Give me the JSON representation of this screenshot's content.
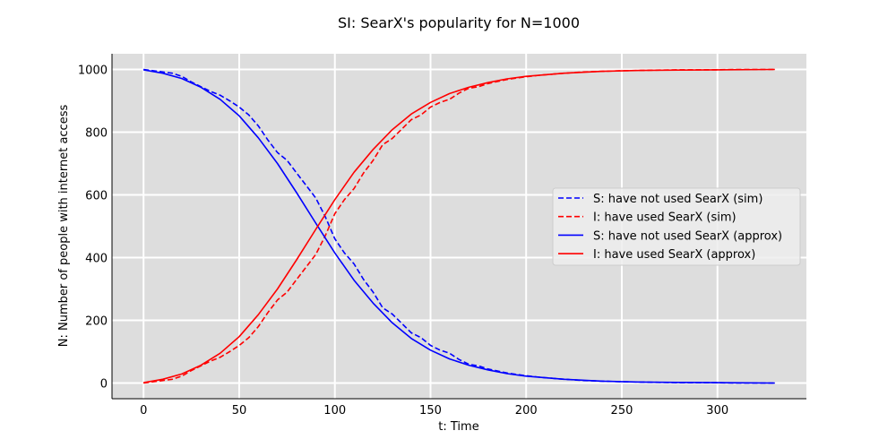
{
  "chart_data": {
    "type": "line",
    "title": "SI: SearX's popularity for N=1000",
    "xlabel": "t: Time",
    "ylabel": "N: Number of people with internet access",
    "xlim": [
      -16.5,
      346.5
    ],
    "ylim": [
      -50,
      1050
    ],
    "xticks": [
      0,
      50,
      100,
      150,
      200,
      250,
      300
    ],
    "yticks": [
      0,
      200,
      400,
      600,
      800,
      1000
    ],
    "grid": true,
    "legend_position": "center-right",
    "background_color": "#dddddd",
    "series": [
      {
        "name": "S: have not used SearX (sim)",
        "color": "#0000ff",
        "style": "dashed",
        "x": [
          0,
          5,
          10,
          15,
          20,
          25,
          30,
          35,
          40,
          45,
          50,
          55,
          60,
          65,
          70,
          75,
          80,
          85,
          90,
          95,
          100,
          105,
          110,
          115,
          120,
          125,
          130,
          135,
          140,
          145,
          150,
          155,
          160,
          165,
          170,
          175,
          180,
          190,
          200,
          210,
          220,
          230,
          240,
          250,
          260,
          270,
          280,
          290,
          300,
          310,
          320,
          330
        ],
        "values": [
          1000,
          996,
          992,
          988,
          978,
          960,
          945,
          930,
          918,
          900,
          880,
          855,
          820,
          775,
          735,
          710,
          670,
          630,
          590,
          530,
          460,
          415,
          380,
          330,
          290,
          240,
          220,
          190,
          160,
          145,
          120,
          105,
          95,
          75,
          60,
          55,
          45,
          32,
          23,
          17,
          12,
          8,
          6,
          4,
          3,
          2,
          1,
          1,
          1,
          0,
          0,
          0
        ]
      },
      {
        "name": "I: have used SearX (sim)",
        "color": "#ff0000",
        "style": "dashed",
        "x": [
          0,
          5,
          10,
          15,
          20,
          25,
          30,
          35,
          40,
          45,
          50,
          55,
          60,
          65,
          70,
          75,
          80,
          85,
          90,
          95,
          100,
          105,
          110,
          115,
          120,
          125,
          130,
          135,
          140,
          145,
          150,
          155,
          160,
          165,
          170,
          175,
          180,
          190,
          200,
          210,
          220,
          230,
          240,
          250,
          260,
          270,
          280,
          290,
          300,
          310,
          320,
          330
        ],
        "values": [
          0,
          4,
          8,
          12,
          22,
          40,
          55,
          70,
          82,
          100,
          120,
          145,
          180,
          225,
          265,
          290,
          330,
          370,
          410,
          470,
          540,
          585,
          620,
          670,
          710,
          760,
          780,
          810,
          840,
          855,
          880,
          895,
          905,
          925,
          940,
          945,
          955,
          968,
          977,
          983,
          988,
          992,
          994,
          996,
          997,
          998,
          999,
          999,
          999,
          1000,
          1000,
          1000
        ]
      },
      {
        "name": "S: have not used SearX (approx)",
        "color": "#0000ff",
        "style": "solid",
        "x": [
          0,
          10,
          20,
          30,
          40,
          50,
          60,
          70,
          80,
          90,
          100,
          110,
          120,
          130,
          140,
          150,
          160,
          170,
          180,
          190,
          200,
          220,
          240,
          260,
          280,
          300,
          330
        ],
        "values": [
          999,
          988,
          971,
          943,
          905,
          852,
          782,
          700,
          607,
          510,
          415,
          328,
          255,
          192,
          142,
          105,
          77,
          57,
          42,
          30,
          22,
          12,
          6,
          3,
          2,
          1,
          0
        ]
      },
      {
        "name": "I: have used SearX (approx)",
        "color": "#ff0000",
        "style": "solid",
        "x": [
          0,
          10,
          20,
          30,
          40,
          50,
          60,
          70,
          80,
          90,
          100,
          110,
          120,
          130,
          140,
          150,
          160,
          170,
          180,
          190,
          200,
          220,
          240,
          260,
          280,
          300,
          330
        ],
        "values": [
          1,
          12,
          29,
          57,
          95,
          148,
          218,
          300,
          393,
          490,
          585,
          672,
          745,
          808,
          858,
          895,
          923,
          943,
          958,
          970,
          978,
          988,
          994,
          997,
          998,
          999,
          1000
        ]
      }
    ]
  }
}
